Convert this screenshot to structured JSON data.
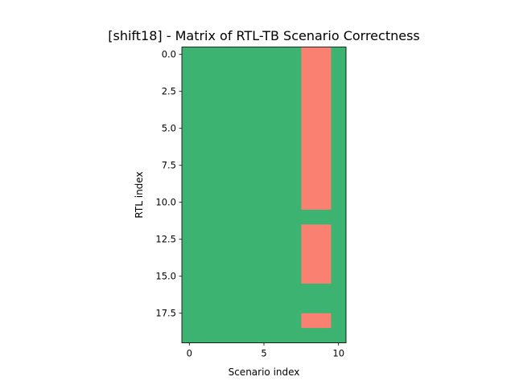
{
  "chart_data": {
    "type": "heatmap",
    "title": "[shift18] - Matrix of RTL-TB Scenario Correctness",
    "xlabel": "Scenario index",
    "ylabel": "RTL index",
    "x_range": [
      -0.5,
      10.5
    ],
    "y_range": [
      -0.5,
      19.5
    ],
    "y_inverted": true,
    "x_ticks": [
      0,
      5,
      10
    ],
    "x_tick_labels": [
      "0",
      "5",
      "10"
    ],
    "y_ticks": [
      0.0,
      2.5,
      5.0,
      7.5,
      10.0,
      12.5,
      15.0,
      17.5
    ],
    "y_tick_labels": [
      "0.0",
      "2.5",
      "5.0",
      "7.5",
      "10.0",
      "12.5",
      "15.0",
      "17.5"
    ],
    "grid": false,
    "colors": {
      "correct": "#3CB371",
      "incorrect": "#FA8072"
    },
    "n_rows": 20,
    "n_cols": 11,
    "matrix": [
      [
        1,
        1,
        1,
        1,
        1,
        1,
        1,
        1,
        0,
        0,
        1
      ],
      [
        1,
        1,
        1,
        1,
        1,
        1,
        1,
        1,
        0,
        0,
        1
      ],
      [
        1,
        1,
        1,
        1,
        1,
        1,
        1,
        1,
        0,
        0,
        1
      ],
      [
        1,
        1,
        1,
        1,
        1,
        1,
        1,
        1,
        0,
        0,
        1
      ],
      [
        1,
        1,
        1,
        1,
        1,
        1,
        1,
        1,
        0,
        0,
        1
      ],
      [
        1,
        1,
        1,
        1,
        1,
        1,
        1,
        1,
        0,
        0,
        1
      ],
      [
        1,
        1,
        1,
        1,
        1,
        1,
        1,
        1,
        0,
        0,
        1
      ],
      [
        1,
        1,
        1,
        1,
        1,
        1,
        1,
        1,
        0,
        0,
        1
      ],
      [
        1,
        1,
        1,
        1,
        1,
        1,
        1,
        1,
        0,
        0,
        1
      ],
      [
        1,
        1,
        1,
        1,
        1,
        1,
        1,
        1,
        0,
        0,
        1
      ],
      [
        1,
        1,
        1,
        1,
        1,
        1,
        1,
        1,
        0,
        0,
        1
      ],
      [
        1,
        1,
        1,
        1,
        1,
        1,
        1,
        1,
        1,
        1,
        1
      ],
      [
        1,
        1,
        1,
        1,
        1,
        1,
        1,
        1,
        0,
        0,
        1
      ],
      [
        1,
        1,
        1,
        1,
        1,
        1,
        1,
        1,
        0,
        0,
        1
      ],
      [
        1,
        1,
        1,
        1,
        1,
        1,
        1,
        1,
        0,
        0,
        1
      ],
      [
        1,
        1,
        1,
        1,
        1,
        1,
        1,
        1,
        0,
        0,
        1
      ],
      [
        1,
        1,
        1,
        1,
        1,
        1,
        1,
        1,
        1,
        1,
        1
      ],
      [
        1,
        1,
        1,
        1,
        1,
        1,
        1,
        1,
        1,
        1,
        1
      ],
      [
        1,
        1,
        1,
        1,
        1,
        1,
        1,
        1,
        0,
        0,
        1
      ],
      [
        1,
        1,
        1,
        1,
        1,
        1,
        1,
        1,
        1,
        1,
        1
      ]
    ]
  }
}
